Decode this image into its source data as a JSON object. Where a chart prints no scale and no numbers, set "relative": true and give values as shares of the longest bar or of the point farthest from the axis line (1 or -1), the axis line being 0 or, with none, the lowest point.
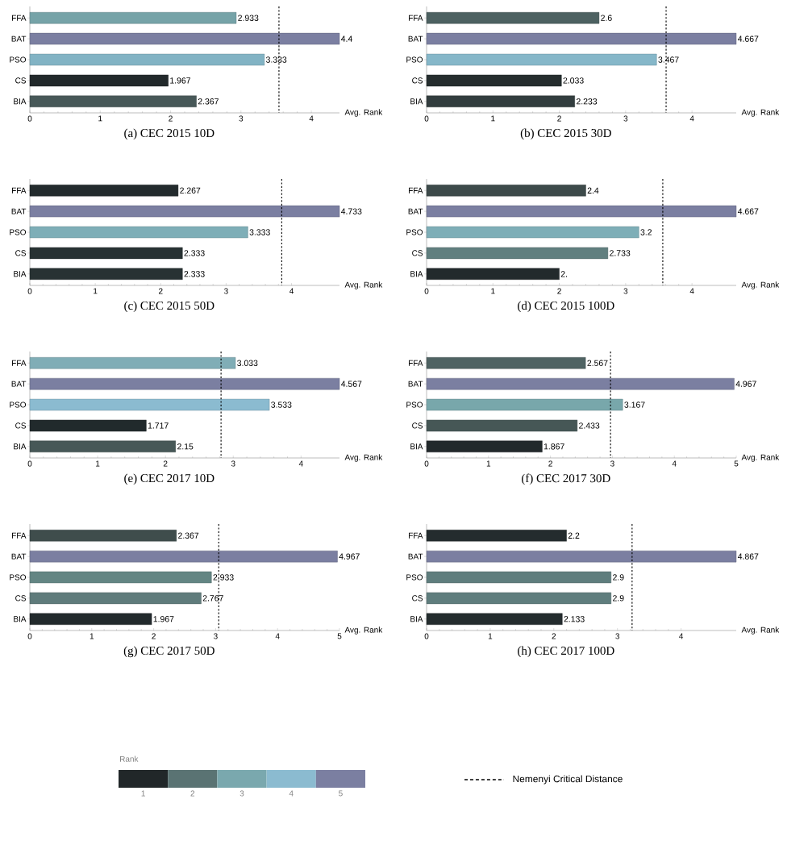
{
  "chart_data": [
    {
      "type": "bar",
      "orientation": "horizontal",
      "title": "(a) CEC 2015 10D",
      "xlabel": "Avg. Rank",
      "categories": [
        "FFA",
        "BAT",
        "PSO",
        "CS",
        "BIA"
      ],
      "values": [
        2.933,
        4.4,
        3.333,
        1.967,
        2.367
      ],
      "colors": [
        "#76a3a8",
        "#7b7fa1",
        "#82b3c4",
        "#22292b",
        "#475858"
      ],
      "xlim": [
        0,
        4.4
      ],
      "xticks": [
        0,
        1,
        2,
        3,
        4
      ],
      "ref_lines": [
        {
          "axis": "x",
          "value": 3.54,
          "line_style": "dashed"
        }
      ],
      "data_labels": true
    },
    {
      "type": "bar",
      "orientation": "horizontal",
      "title": "(b) CEC 2015 30D",
      "xlabel": "Avg. Rank",
      "categories": [
        "FFA",
        "BAT",
        "PSO",
        "CS",
        "BIA"
      ],
      "values": [
        2.6,
        4.667,
        3.467,
        2.033,
        2.233
      ],
      "colors": [
        "#4d6161",
        "#7b7fa1",
        "#86b7c9",
        "#252d2e",
        "#323d3e"
      ],
      "xlim": [
        0,
        4.667
      ],
      "xticks": [
        0,
        1,
        2,
        3,
        4
      ],
      "ref_lines": [
        {
          "axis": "x",
          "value": 3.61,
          "line_style": "dashed"
        }
      ],
      "data_labels": true
    },
    {
      "type": "bar",
      "orientation": "horizontal",
      "title": "(c) CEC 2015 50D",
      "xlabel": "Avg. Rank",
      "categories": [
        "FFA",
        "BAT",
        "PSO",
        "CS",
        "BIA"
      ],
      "values": [
        2.267,
        4.733,
        3.333,
        2.333,
        2.333
      ],
      "colors": [
        "#232b2d",
        "#7b7fa1",
        "#7eaeb7",
        "#283233",
        "#283233"
      ],
      "xlim": [
        0,
        4.733
      ],
      "xticks": [
        0,
        1,
        2,
        3,
        4
      ],
      "ref_lines": [
        {
          "axis": "x",
          "value": 3.85,
          "line_style": "dashed"
        }
      ],
      "data_labels": true
    },
    {
      "type": "bar",
      "orientation": "horizontal",
      "title": "(d) CEC 2015 100D",
      "xlabel": "Avg. Rank",
      "categories": [
        "FFA",
        "BAT",
        "PSO",
        "CS",
        "BIA"
      ],
      "values": [
        2.4,
        4.667,
        3.2,
        2.733,
        2.0
      ],
      "value_labels": [
        "2.4",
        "4.667",
        "3.2",
        "2.733",
        "2."
      ],
      "colors": [
        "#3d4a4a",
        "#7b7fa1",
        "#7eaeb7",
        "#617f7f",
        "#222a2c"
      ],
      "xlim": [
        0,
        4.667
      ],
      "xticks": [
        0,
        1,
        2,
        3,
        4
      ],
      "ref_lines": [
        {
          "axis": "x",
          "value": 3.56,
          "line_style": "dashed"
        }
      ]
    },
    {
      "type": "bar",
      "orientation": "horizontal",
      "title": "(e) CEC 2017 10D",
      "xlabel": "Avg. Rank",
      "categories": [
        "FFA",
        "BAT",
        "PSO",
        "CS",
        "BIA"
      ],
      "values": [
        3.033,
        4.567,
        3.533,
        1.717,
        2.15
      ],
      "colors": [
        "#80adb6",
        "#7b7fa1",
        "#8bbbd0",
        "#212a2c",
        "#475857"
      ],
      "xlim": [
        0,
        4.567
      ],
      "xticks": [
        0,
        1,
        2,
        3,
        4
      ],
      "ref_lines": [
        {
          "axis": "x",
          "value": 2.82,
          "line_style": "dashed"
        }
      ],
      "data_labels": true
    },
    {
      "type": "bar",
      "orientation": "horizontal",
      "title": "(f) CEC 2017 30D",
      "xlabel": "Avg. Rank",
      "categories": [
        "FFA",
        "BAT",
        "PSO",
        "CS",
        "BIA"
      ],
      "values": [
        2.567,
        4.967,
        3.167,
        2.433,
        1.867
      ],
      "colors": [
        "#4f6363",
        "#7b7fa1",
        "#78a7ab",
        "#465756",
        "#22292b"
      ],
      "xlim": [
        0,
        5
      ],
      "xticks": [
        0,
        1,
        2,
        3,
        4,
        5
      ],
      "ref_lines": [
        {
          "axis": "x",
          "value": 2.97,
          "line_style": "dashed"
        }
      ],
      "data_labels": true
    },
    {
      "type": "bar",
      "orientation": "horizontal",
      "title": "(g) CEC 2017 50D",
      "xlabel": "Avg. Rank",
      "categories": [
        "FFA",
        "BAT",
        "PSO",
        "CS",
        "BIA"
      ],
      "values": [
        2.367,
        4.967,
        2.933,
        2.767,
        1.967
      ],
      "colors": [
        "#3f4d4c",
        "#7b7fa1",
        "#638583",
        "#5f7b7b",
        "#222a2c"
      ],
      "xlim": [
        0,
        5
      ],
      "xticks": [
        0,
        1,
        2,
        3,
        4,
        5
      ],
      "ref_lines": [
        {
          "axis": "x",
          "value": 3.05,
          "line_style": "dashed"
        }
      ],
      "data_labels": true
    },
    {
      "type": "bar",
      "orientation": "horizontal",
      "title": "(h) CEC 2017 100D",
      "xlabel": "Avg. Rank",
      "categories": [
        "FFA",
        "BAT",
        "PSO",
        "CS",
        "BIA"
      ],
      "values": [
        2.2,
        4.867,
        2.9,
        2.9,
        2.133
      ],
      "colors": [
        "#242c2e",
        "#7b7fa1",
        "#5f7d7d",
        "#5f7d7d",
        "#242c2e"
      ],
      "xlim": [
        0,
        4.867
      ],
      "xticks": [
        0,
        1,
        2,
        3,
        4
      ],
      "ref_lines": [
        {
          "axis": "x",
          "value": 3.23,
          "line_style": "dashed"
        }
      ],
      "data_labels": true
    },
    {
      "type": "bar",
      "relative": true,
      "title": "Rank",
      "categories": [
        "1",
        "2",
        "3",
        "4",
        "5"
      ],
      "values": [
        1,
        1,
        1,
        1,
        1
      ],
      "colors": [
        "#212729",
        "#5a7373",
        "#7aa8ae",
        "#8bbbd0",
        "#7b7fa1"
      ],
      "annotations": [
        "Nemenyi Critical Distance"
      ]
    }
  ]
}
